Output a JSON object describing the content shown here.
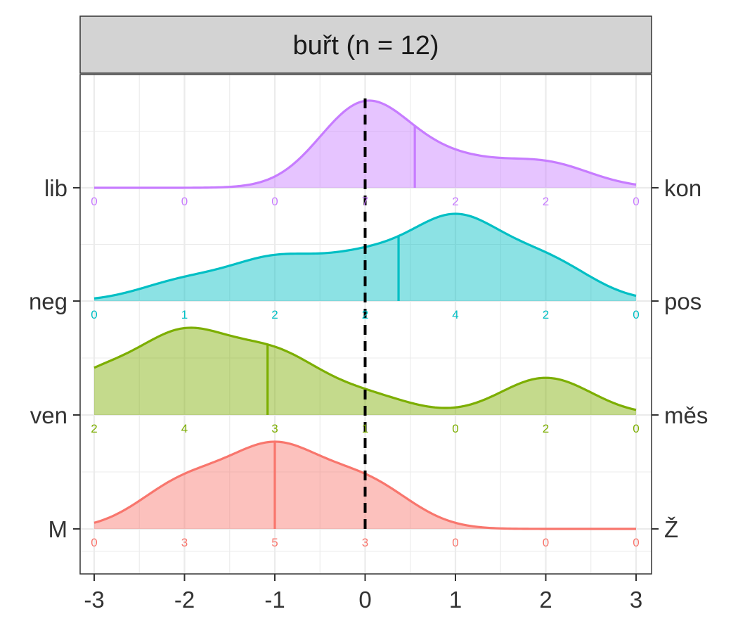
{
  "chart_data": {
    "type": "ridgeline",
    "panel_title": "buřt (n = 12)",
    "xlabel": "",
    "ylabel": "",
    "xlim": [
      -3,
      3
    ],
    "x_ticks": [
      "-3",
      "-2",
      "-1",
      "0",
      "1",
      "2",
      "3"
    ],
    "reference_line_x": 0,
    "grid": true,
    "legend": "none",
    "series": [
      {
        "left_label": "M",
        "right_label": "Ž",
        "color": "#f8766d",
        "counts": [
          0,
          3,
          5,
          3,
          0,
          0,
          0
        ],
        "count_labels": [
          "0",
          "3",
          "5",
          "3",
          "0",
          "0",
          "0"
        ],
        "median": -1
      },
      {
        "left_label": "ven",
        "right_label": "měs",
        "color": "#7cae00",
        "counts": [
          2,
          4,
          3,
          1,
          0,
          2,
          0
        ],
        "count_labels": [
          "2",
          "4",
          "3",
          "1",
          "0",
          "2",
          "0"
        ],
        "median": -1.08
      },
      {
        "left_label": "neg",
        "right_label": "pos",
        "color": "#00bfc4",
        "counts": [
          0,
          1,
          2,
          2,
          4,
          2,
          0
        ],
        "count_labels": [
          "0",
          "1",
          "2",
          "2",
          "4",
          "2",
          "0"
        ],
        "median": 0.37
      },
      {
        "left_label": "lib",
        "right_label": "kon",
        "color": "#c77cff",
        "counts": [
          0,
          0,
          0,
          7,
          2,
          2,
          0
        ],
        "count_labels": [
          "0",
          "0",
          "0",
          "7",
          "2",
          "2",
          "0"
        ],
        "median": 0.55
      }
    ]
  }
}
